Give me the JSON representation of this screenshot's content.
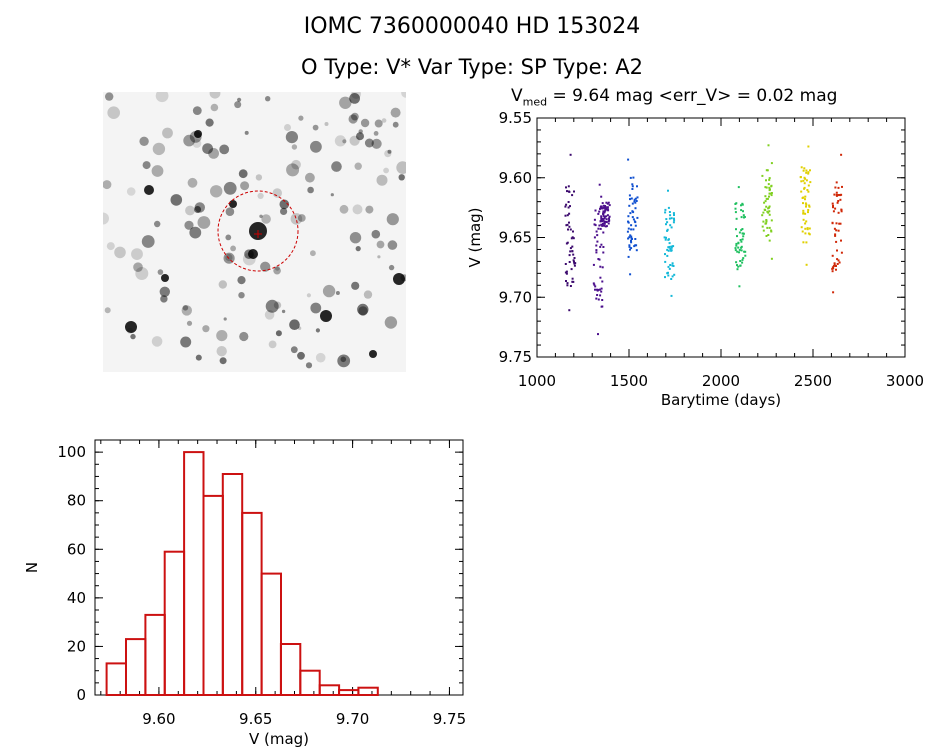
{
  "header": {
    "title_line1": "IOMC 7360000040    HD 153024",
    "title_line2": "O Type: V*   Var Type:    SP Type: A2"
  },
  "lightcurve": {
    "title_prefix": "V",
    "title_sub": "med",
    "title_rest": " = 9.64 mag <err_V> = 0.02 mag"
  },
  "colors": {
    "hist": "#cc1111",
    "axis": "#000000",
    "target_marker": "#cc0000"
  },
  "chart_data": [
    {
      "type": "scatter",
      "name": "lightcurve",
      "title": "V_med = 9.64 mag <err_V> = 0.02 mag",
      "xlabel": "Barytime (days)",
      "ylabel": "V (mag)",
      "xlim": [
        1000,
        3000
      ],
      "ylim": [
        9.75,
        9.55
      ],
      "y_inverted": true,
      "xticks": [
        1000,
        1500,
        2000,
        2500,
        3000
      ],
      "yticks": [
        9.55,
        9.6,
        9.65,
        9.7,
        9.75
      ],
      "ytick_labels": [
        "9.55",
        "9.60",
        "9.65",
        "9.70",
        "9.75"
      ],
      "grid": false,
      "clusters": [
        {
          "x": 1175,
          "ymin": 9.58,
          "ymax": 9.71,
          "color": "#3c0a6e"
        },
        {
          "x": 1330,
          "ymin": 9.605,
          "ymax": 9.73,
          "color": "#4b0f8c"
        },
        {
          "x": 1365,
          "ymin": 9.615,
          "ymax": 9.645,
          "color": "#4b0f8c"
        },
        {
          "x": 1515,
          "ymin": 9.584,
          "ymax": 9.68,
          "color": "#1050d0"
        },
        {
          "x": 1715,
          "ymin": 9.61,
          "ymax": 9.698,
          "color": "#14b8d8"
        },
        {
          "x": 2100,
          "ymin": 9.607,
          "ymax": 9.69,
          "color": "#20c060"
        },
        {
          "x": 2245,
          "ymin": 9.572,
          "ymax": 9.667,
          "color": "#80d020"
        },
        {
          "x": 2455,
          "ymin": 9.573,
          "ymax": 9.672,
          "color": "#e0d000"
        },
        {
          "x": 2625,
          "ymin": 9.58,
          "ymax": 9.695,
          "color": "#d02808"
        }
      ]
    },
    {
      "type": "bar",
      "name": "histogram",
      "xlabel": "V (mag)",
      "ylabel": "N",
      "xlim": [
        9.567,
        9.757
      ],
      "ylim": [
        0,
        105
      ],
      "xticks": [
        9.6,
        9.65,
        9.7,
        9.75
      ],
      "xtick_labels": [
        "9.60",
        "9.65",
        "9.70",
        "9.75"
      ],
      "yticks": [
        0,
        20,
        40,
        60,
        80,
        100
      ],
      "bin_width": 0.01,
      "bin_left_edges": [
        9.573,
        9.583,
        9.593,
        9.603,
        9.613,
        9.623,
        9.633,
        9.643,
        9.653,
        9.663,
        9.673,
        9.683,
        9.693,
        9.703,
        9.713,
        9.723
      ],
      "values": [
        13,
        23,
        33,
        59,
        100,
        82,
        91,
        75,
        50,
        21,
        10,
        4,
        2,
        3,
        0,
        0
      ]
    }
  ]
}
